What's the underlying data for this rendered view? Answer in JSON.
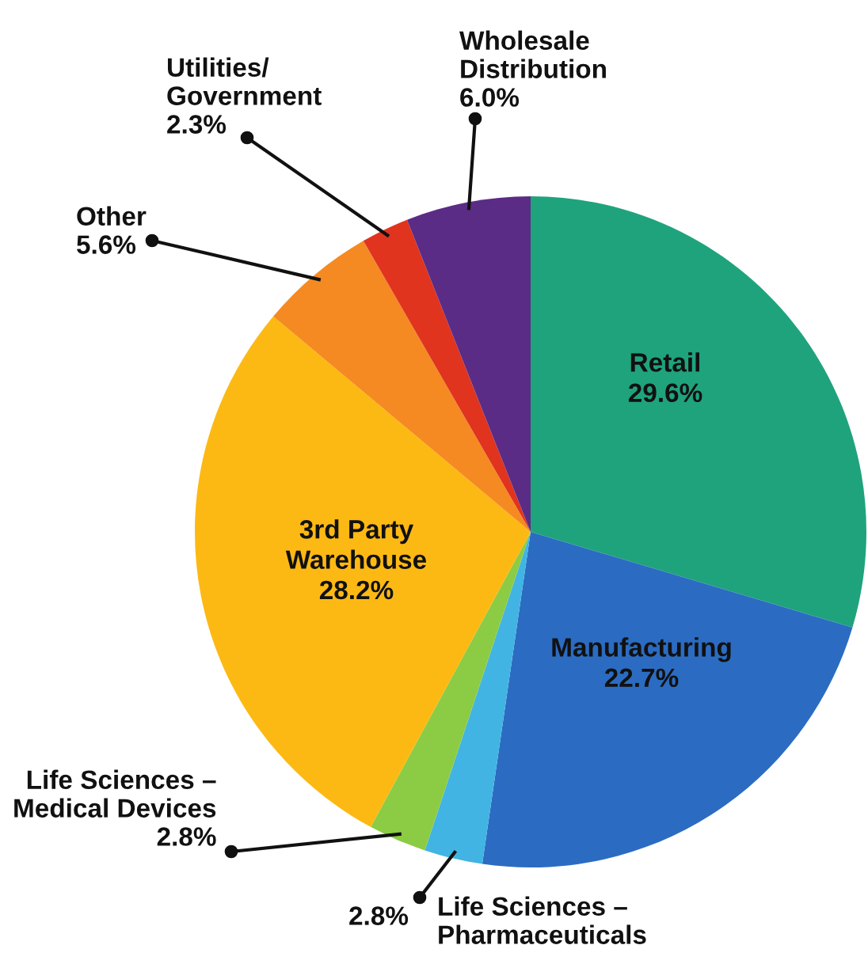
{
  "chart_data": {
    "type": "pie",
    "categories": [
      "Retail",
      "Manufacturing",
      "Life Sciences –\nPharmaceuticals",
      "Life Sciences –\nMedical Devices",
      "3rd Party\nWarehouse",
      "Other",
      "Utilities/\nGovernment",
      "Wholesale\nDistribution"
    ],
    "values": [
      29.6,
      22.7,
      2.8,
      2.8,
      28.2,
      5.6,
      2.3,
      6.0
    ],
    "value_labels": [
      "29.6%",
      "22.7%",
      "2.8%",
      "2.8%",
      "28.2%",
      "5.6%",
      "2.3%",
      "6.0%"
    ],
    "colors": [
      "#1fa37c",
      "#2b6cc2",
      "#41b4e3",
      "#8ccc45",
      "#fdb913",
      "#f58a22",
      "#e0341f",
      "#5b2c85"
    ]
  }
}
